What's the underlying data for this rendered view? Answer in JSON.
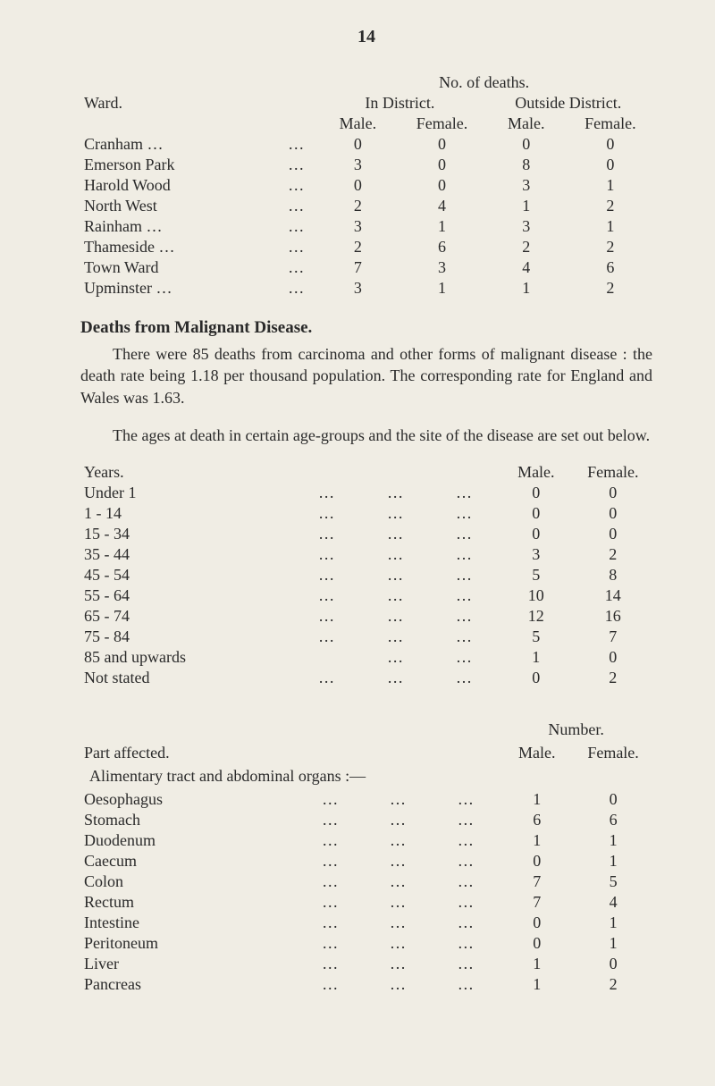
{
  "page_number": "14",
  "table1": {
    "super_header": "No. of deaths.",
    "ward_label": "Ward.",
    "in_district": "In District.",
    "outside_district": "Outside District.",
    "male": "Male.",
    "female": "Female.",
    "rows": [
      {
        "name": "Cranham",
        "trail": "…",
        "lead": "…",
        "m1": "0",
        "f1": "0",
        "m2": "0",
        "f2": "0"
      },
      {
        "name": "Emerson Park",
        "trail": "",
        "lead": "…",
        "m1": "3",
        "f1": "0",
        "m2": "8",
        "f2": "0"
      },
      {
        "name": "Harold Wood",
        "trail": "",
        "lead": "…",
        "m1": "0",
        "f1": "0",
        "m2": "3",
        "f2": "1"
      },
      {
        "name": "North West",
        "trail": "",
        "lead": "…",
        "m1": "2",
        "f1": "4",
        "m2": "1",
        "f2": "2"
      },
      {
        "name": "Rainham",
        "trail": "…",
        "lead": "…",
        "m1": "3",
        "f1": "1",
        "m2": "3",
        "f2": "1"
      },
      {
        "name": "Thameside",
        "trail": "…",
        "lead": "…",
        "m1": "2",
        "f1": "6",
        "m2": "2",
        "f2": "2"
      },
      {
        "name": "Town Ward",
        "trail": "",
        "lead": "…",
        "m1": "7",
        "f1": "3",
        "m2": "4",
        "f2": "6"
      },
      {
        "name": "Upminster",
        "trail": "…",
        "lead": "…",
        "m1": "3",
        "f1": "1",
        "m2": "1",
        "f2": "2"
      }
    ]
  },
  "heading_deaths": "Deaths from Malignant Disease.",
  "para1": "There were 85 deaths from carcinoma and other forms of malignant disease : the death rate being 1.18 per thousand population. The corresponding rate for England and Wales was 1.63.",
  "para2": "The ages at death in certain age-groups and the site of the disease are set out below.",
  "table2": {
    "years_label": "Years.",
    "male": "Male.",
    "female": "Female.",
    "rows": [
      {
        "label": "Under 1",
        "d1": "…",
        "d2": "…",
        "d3": "…",
        "m": "0",
        "f": "0"
      },
      {
        "label": "1 - 14",
        "d1": "…",
        "d2": "…",
        "d3": "…",
        "m": "0",
        "f": "0"
      },
      {
        "label": "15 - 34",
        "d1": "…",
        "d2": "…",
        "d3": "…",
        "m": "0",
        "f": "0"
      },
      {
        "label": "35 - 44",
        "d1": "…",
        "d2": "…",
        "d3": "…",
        "m": "3",
        "f": "2"
      },
      {
        "label": "45 - 54",
        "d1": "…",
        "d2": "…",
        "d3": "…",
        "m": "5",
        "f": "8"
      },
      {
        "label": "55 - 64",
        "d1": "…",
        "d2": "…",
        "d3": "…",
        "m": "10",
        "f": "14"
      },
      {
        "label": "65 - 74",
        "d1": "…",
        "d2": "…",
        "d3": "…",
        "m": "12",
        "f": "16"
      },
      {
        "label": "75 - 84",
        "d1": "…",
        "d2": "…",
        "d3": "…",
        "m": "5",
        "f": "7"
      },
      {
        "label": "85 and upwards",
        "d1": "",
        "d2": "…",
        "d3": "…",
        "m": "1",
        "f": "0"
      },
      {
        "label": "Not stated",
        "d1": "…",
        "d2": "…",
        "d3": "…",
        "m": "0",
        "f": "2"
      }
    ]
  },
  "table3": {
    "number_label": "Number.",
    "part_affected": "Part affected.",
    "male": "Male.",
    "female": "Female.",
    "alimentary": "Alimentary tract and abdominal organs :—",
    "rows": [
      {
        "label": "Oesophagus",
        "d1": "…",
        "d2": "…",
        "d3": "…",
        "m": "1",
        "f": "0"
      },
      {
        "label": "Stomach",
        "d1": "…",
        "d2": "…",
        "d3": "…",
        "m": "6",
        "f": "6"
      },
      {
        "label": "Duodenum",
        "d1": "…",
        "d2": "…",
        "d3": "…",
        "m": "1",
        "f": "1"
      },
      {
        "label": "Caecum",
        "d1": "…",
        "d2": "…",
        "d3": "…",
        "m": "0",
        "f": "1"
      },
      {
        "label": "Colon",
        "d1": "…",
        "d2": "…",
        "d3": "…",
        "m": "7",
        "f": "5"
      },
      {
        "label": "Rectum",
        "d1": "…",
        "d2": "…",
        "d3": "…",
        "m": "7",
        "f": "4"
      },
      {
        "label": "Intestine",
        "d1": "…",
        "d2": "…",
        "d3": "…",
        "m": "0",
        "f": "1"
      },
      {
        "label": "Peritoneum",
        "d1": "…",
        "d2": "…",
        "d3": "…",
        "m": "0",
        "f": "1"
      },
      {
        "label": "Liver",
        "d1": "…",
        "d2": "…",
        "d3": "…",
        "m": "1",
        "f": "0"
      },
      {
        "label": "Pancreas",
        "d1": "…",
        "d2": "…",
        "d3": "…",
        "m": "1",
        "f": "2"
      }
    ]
  },
  "colors": {
    "background": "#f0ede4",
    "text": "#2a2a2a"
  }
}
